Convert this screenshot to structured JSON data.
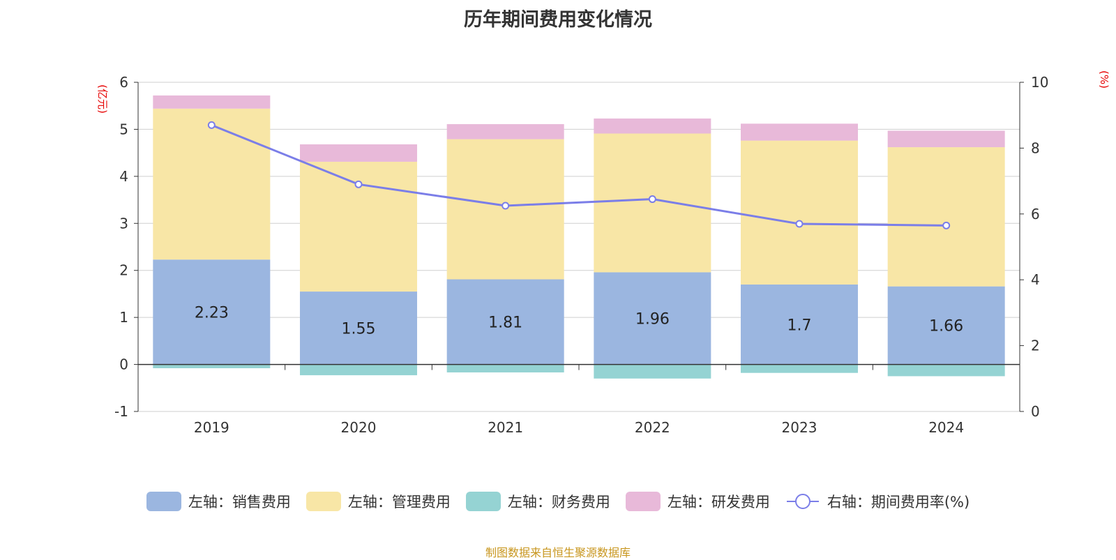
{
  "title": "历年期间费用变化情况",
  "source": "制图数据来自恒生聚源数据库",
  "chart_data": {
    "type": "bar",
    "stacked": true,
    "title": "历年期间费用变化情况",
    "categories": [
      "2019",
      "2020",
      "2021",
      "2022",
      "2023",
      "2024"
    ],
    "left_axis": {
      "unit": "(亿元)",
      "ylim": [
        -1,
        6
      ],
      "ticks": [
        "-1",
        "0",
        "1",
        "2",
        "3",
        "4",
        "5",
        "6"
      ]
    },
    "right_axis": {
      "unit": "(%)",
      "ylim": [
        0,
        10
      ],
      "ticks": [
        "0",
        "2",
        "4",
        "6",
        "8",
        "10"
      ]
    },
    "series": [
      {
        "name": "左轴：销售费用",
        "axis": "left",
        "color": "#9bb6e0",
        "values": [
          2.23,
          1.55,
          1.81,
          1.96,
          1.7,
          1.66
        ],
        "labels": [
          "2.23",
          "1.55",
          "1.81",
          "1.96",
          "1.7",
          "1.66"
        ]
      },
      {
        "name": "左轴：管理费用",
        "axis": "left",
        "color": "#f8e6a6",
        "values": [
          3.21,
          2.76,
          2.98,
          2.95,
          3.06,
          2.96
        ]
      },
      {
        "name": "左轴：财务费用",
        "axis": "left",
        "color": "#95d3d3",
        "values": [
          -0.08,
          -0.23,
          -0.17,
          -0.3,
          -0.18,
          -0.25
        ]
      },
      {
        "name": "左轴：研发费用",
        "axis": "left",
        "color": "#e8b9d9",
        "values": [
          0.28,
          0.37,
          0.32,
          0.32,
          0.36,
          0.35
        ]
      },
      {
        "name": "右轴：期间费用率(%)",
        "axis": "right",
        "type": "line",
        "color": "#7b7ee8",
        "values": [
          8.7,
          6.9,
          6.25,
          6.45,
          5.7,
          5.65
        ]
      }
    ],
    "legend_position": "bottom",
    "grid": true
  }
}
